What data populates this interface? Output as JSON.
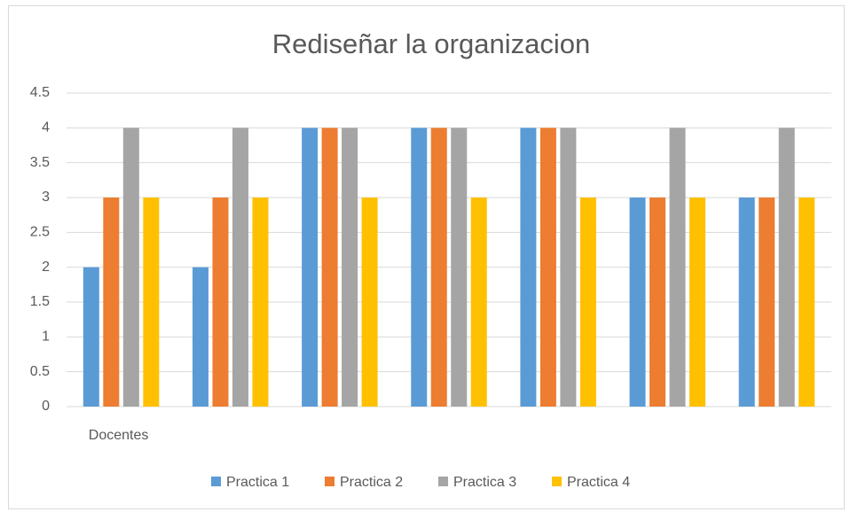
{
  "chart_data": {
    "type": "bar",
    "title": "Rediseñar la organizacion",
    "categories": [
      "Docentes",
      null,
      null,
      null,
      null,
      null,
      null
    ],
    "series": [
      {
        "name": "Practica 1",
        "color": "#5b9bd5",
        "values": [
          2,
          2,
          4,
          4,
          4,
          3,
          3
        ]
      },
      {
        "name": "Practica 2",
        "color": "#ed7d31",
        "values": [
          3,
          3,
          4,
          4,
          4,
          3,
          3
        ]
      },
      {
        "name": "Practica 3",
        "color": "#a5a5a5",
        "values": [
          4,
          4,
          4,
          4,
          4,
          4,
          4
        ]
      },
      {
        "name": "Practica 4",
        "color": "#ffc000",
        "values": [
          3,
          3,
          3,
          3,
          3,
          3,
          3
        ]
      }
    ],
    "ylim": [
      0,
      4.5
    ],
    "yticks": [
      0,
      0.5,
      1,
      1.5,
      2,
      2.5,
      3,
      3.5,
      4,
      4.5
    ],
    "grid": true,
    "legend": "bottom"
  }
}
